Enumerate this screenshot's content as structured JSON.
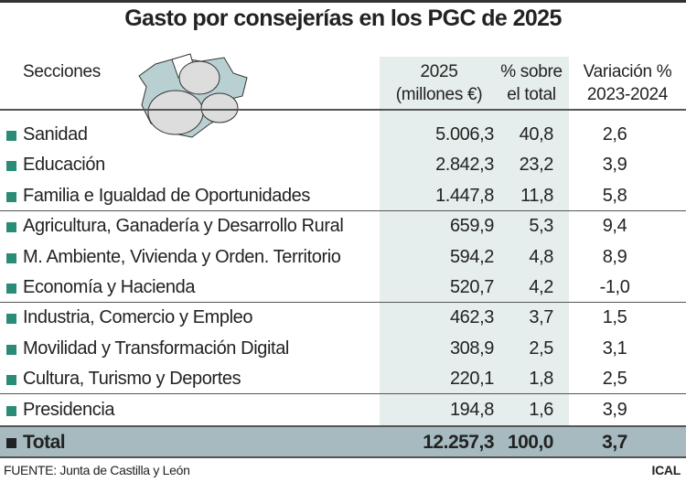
{
  "title": "Gasto por consejerías en los PGC de 2025",
  "colors": {
    "bullet": "#2a8c77",
    "highlight_column": "#e5eeec",
    "total_row": "#a6bac0"
  },
  "illustration": "map-with-euro-coins",
  "chart_data": {
    "type": "table",
    "title": "Gasto por consejerías en los PGC de 2025",
    "headers": {
      "section": "Secciones",
      "amount": [
        "2025",
        "(millones €)"
      ],
      "share": [
        "% sobre",
        "el total"
      ],
      "variation": [
        "Variación %",
        "2023-2024"
      ]
    },
    "rows": [
      {
        "section": "Sanidad",
        "amount": "5.006,3",
        "share": "40,8",
        "variation": "2,6"
      },
      {
        "section": "Educación",
        "amount": "2.842,3",
        "share": "23,2",
        "variation": "3,9"
      },
      {
        "section": "Familia e Igualdad de Oportunidades",
        "amount": "1.447,8",
        "share": "11,8",
        "variation": "5,8"
      },
      {
        "section": "Agricultura, Ganadería y Desarrollo Rural",
        "amount": "659,9",
        "share": "5,3",
        "variation": "9,4"
      },
      {
        "section": "M. Ambiente, Vivienda y Orden. Territorio",
        "amount": "594,2",
        "share": "4,8",
        "variation": "8,9"
      },
      {
        "section": "Economía y Hacienda",
        "amount": "520,7",
        "share": "4,2",
        "variation": "-1,0"
      },
      {
        "section": "Industria, Comercio y Empleo",
        "amount": "462,3",
        "share": "3,7",
        "variation": "1,5"
      },
      {
        "section": "Movilidad y Transformación Digital",
        "amount": "308,9",
        "share": "2,5",
        "variation": "3,1"
      },
      {
        "section": "Cultura, Turismo y Deportes",
        "amount": "220,1",
        "share": "1,8",
        "variation": "2,5"
      },
      {
        "section": "Presidencia",
        "amount": "194,8",
        "share": "1,6",
        "variation": "3,9"
      }
    ],
    "total": {
      "section": "Total",
      "amount": "12.257,3",
      "share": "100,0",
      "variation": "3,7"
    }
  },
  "footer": {
    "source": "FUENTE: Junta de Castilla y León",
    "credit": "ICAL"
  }
}
